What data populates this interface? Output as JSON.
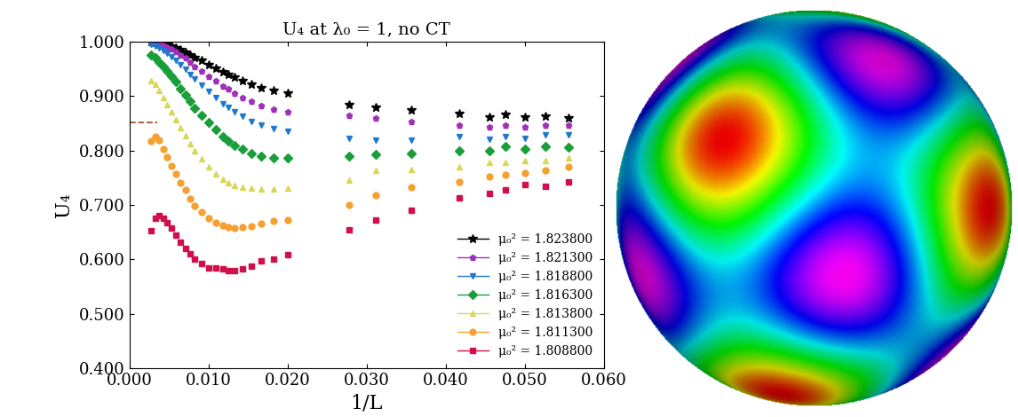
{
  "chart_data": {
    "type": "scatter",
    "title": "U₄ at λ₀ = 1, no CT",
    "x_label": "1/L",
    "y_label": "U₄",
    "x": [
      0.0028,
      0.0033,
      0.0038,
      0.0043,
      0.0048,
      0.0053,
      0.0059,
      0.0065,
      0.0071,
      0.0077,
      0.0083,
      0.0091,
      0.01,
      0.0109,
      0.0118,
      0.0125,
      0.0133,
      0.0143,
      0.0154,
      0.0167,
      0.0182,
      0.02,
      0.0278,
      0.0312,
      0.0357,
      0.0417,
      0.0455,
      0.0476,
      0.05,
      0.0526,
      0.0556
    ],
    "series": [
      {
        "name": "μ₀² = 1.823800",
        "color": "#000000",
        "marker": "star",
        "values": [
          0.9995,
          0.999,
          0.998,
          0.997,
          0.995,
          0.992,
          0.989,
          0.985,
          0.981,
          0.976,
          0.971,
          0.965,
          0.958,
          0.951,
          0.944,
          0.94,
          0.935,
          0.929,
          0.922,
          0.916,
          0.911,
          0.906,
          0.885,
          0.88,
          0.874,
          0.868,
          0.862,
          0.866,
          0.862,
          0.863,
          0.859
        ]
      },
      {
        "name": "μ₀² = 1.821300",
        "color": "#a030b8",
        "marker": "pentagon",
        "values": [
          0.999,
          0.998,
          0.996,
          0.994,
          0.991,
          0.987,
          0.982,
          0.976,
          0.97,
          0.963,
          0.955,
          0.947,
          0.937,
          0.928,
          0.919,
          0.913,
          0.906,
          0.898,
          0.89,
          0.882,
          0.876,
          0.871,
          0.865,
          0.859,
          0.853,
          0.847,
          0.844,
          0.846,
          0.843,
          0.847,
          0.846
        ]
      },
      {
        "name": "μ₀² = 1.818800",
        "color": "#1f78d0",
        "marker": "triangle_down",
        "values": [
          0.995,
          0.992,
          0.988,
          0.983,
          0.978,
          0.972,
          0.965,
          0.957,
          0.949,
          0.94,
          0.931,
          0.92,
          0.908,
          0.897,
          0.886,
          0.879,
          0.871,
          0.863,
          0.854,
          0.846,
          0.84,
          0.836,
          0.822,
          0.819,
          0.819,
          0.826,
          0.82,
          0.826,
          0.823,
          0.829,
          0.828
        ]
      },
      {
        "name": "μ₀² = 1.816300",
        "color": "#1a9e3a",
        "marker": "diamond",
        "values": [
          0.975,
          0.97,
          0.963,
          0.955,
          0.946,
          0.937,
          0.926,
          0.914,
          0.902,
          0.89,
          0.878,
          0.865,
          0.851,
          0.838,
          0.826,
          0.818,
          0.81,
          0.802,
          0.795,
          0.79,
          0.787,
          0.786,
          0.79,
          0.793,
          0.795,
          0.8,
          0.799,
          0.807,
          0.803,
          0.807,
          0.806
        ]
      },
      {
        "name": "μ₀² = 1.813800",
        "color": "#d8d858",
        "marker": "triangle_up",
        "values": [
          0.928,
          0.922,
          0.91,
          0.898,
          0.885,
          0.871,
          0.857,
          0.842,
          0.827,
          0.812,
          0.799,
          0.785,
          0.77,
          0.757,
          0.747,
          0.741,
          0.736,
          0.733,
          0.731,
          0.73,
          0.73,
          0.731,
          0.745,
          0.763,
          0.766,
          0.77,
          0.779,
          0.779,
          0.782,
          0.781,
          0.787
        ]
      },
      {
        "name": "μ₀² = 1.811300",
        "color": "#f5a030",
        "marker": "circle",
        "values": [
          0.817,
          0.826,
          0.819,
          0.803,
          0.788,
          0.772,
          0.757,
          0.741,
          0.727,
          0.712,
          0.698,
          0.687,
          0.676,
          0.668,
          0.662,
          0.659,
          0.658,
          0.659,
          0.661,
          0.665,
          0.67,
          0.672,
          0.7,
          0.718,
          0.733,
          0.742,
          0.752,
          0.756,
          0.758,
          0.764,
          0.77
        ]
      },
      {
        "name": "μ₀² = 1.808800",
        "color": "#d0104a",
        "marker": "square",
        "values": [
          0.652,
          0.675,
          0.68,
          0.676,
          0.668,
          0.658,
          0.645,
          0.632,
          0.62,
          0.61,
          0.6,
          0.592,
          0.585,
          0.584,
          0.582,
          0.58,
          0.58,
          0.582,
          0.588,
          0.598,
          0.6,
          0.608,
          0.655,
          0.672,
          0.69,
          0.713,
          0.722,
          0.727,
          0.738,
          0.735,
          0.743
        ]
      }
    ],
    "reference_line": {
      "x": [
        0.0,
        0.0035
      ],
      "y": 0.852,
      "color": "#a0522d",
      "line_style": "dashed"
    },
    "xlim": [
      0.0,
      0.06
    ],
    "xticks": [
      {
        "value": 0.0,
        "label": "0.000"
      },
      {
        "value": 0.01,
        "label": "0.010"
      },
      {
        "value": 0.02,
        "label": "0.020"
      },
      {
        "value": 0.03,
        "label": "0.030"
      },
      {
        "value": 0.04,
        "label": "0.040"
      },
      {
        "value": 0.05,
        "label": "0.050"
      },
      {
        "value": 0.06,
        "label": "0.060"
      }
    ],
    "ylim": [
      0.4,
      1.0
    ],
    "yticks": [
      {
        "value": 0.4,
        "label": "0.400"
      },
      {
        "value": 0.5,
        "label": "0.500"
      },
      {
        "value": 0.6,
        "label": "0.600"
      },
      {
        "value": 0.7,
        "label": "0.700"
      },
      {
        "value": 0.8,
        "label": "0.800"
      },
      {
        "value": 0.9,
        "label": "0.900"
      },
      {
        "value": 1.0,
        "label": "1.000"
      }
    ],
    "legend": "lower right",
    "grid": false
  }
}
